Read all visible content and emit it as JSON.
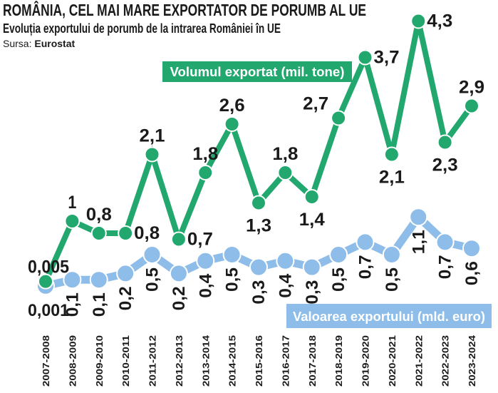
{
  "chart_data": {
    "type": "line",
    "title": "ROMÂNIA, CEL MAI MARE EXPORTATOR DE PORUMB AL UE",
    "subtitle": "Evoluția exportului de porumb de la intrarea României în UE",
    "source_label": "Sursa:",
    "source": "Eurostat",
    "categories": [
      "2007-2008",
      "2008-2009",
      "2009-2010",
      "2010-2011",
      "2011-2012",
      "2012-2013",
      "2013-2014",
      "2014-2015",
      "2015-2016",
      "2016-2017",
      "2017-2018",
      "2018-2019",
      "2019-2020",
      "2020-2021",
      "2021-2022",
      "2022-2023",
      "2023-2024"
    ],
    "series": [
      {
        "name": "Volumul exportat (mil. tone)",
        "color": "#22a86f",
        "values": [
          0.005,
          1,
          0.8,
          0.8,
          2.1,
          0.7,
          1.8,
          2.6,
          1.3,
          1.8,
          1.4,
          2.7,
          3.7,
          2.1,
          4.3,
          2.3,
          2.9
        ],
        "labels": [
          "0,005",
          "1",
          "0,8",
          "0,8",
          "2,1",
          "0,7",
          "1,8",
          "2,6",
          "1,3",
          "1,8",
          "1,4",
          "2,7",
          "3,7",
          "2,1",
          "4,3",
          "2,3",
          "2,9"
        ],
        "label_placement": [
          "left",
          "above",
          "above",
          "below-right",
          "above",
          "right",
          "above",
          "above",
          "below",
          "above",
          "below",
          "left",
          "right",
          "below",
          "right",
          "below",
          "above"
        ]
      },
      {
        "name": "Valoarea exportului (mld. euro)",
        "color": "#8dbde8",
        "values": [
          0.001,
          0.1,
          0.1,
          0.2,
          0.5,
          0.2,
          0.4,
          0.5,
          0.3,
          0.4,
          0.3,
          0.5,
          0.7,
          0.5,
          1.1,
          0.7,
          0.6
        ],
        "labels": [
          "0,001",
          "0,1",
          "0,1",
          "0,2",
          "0,5",
          "0,2",
          "0,4",
          "0,5",
          "0,3",
          "0,4",
          "0,3",
          "0,5",
          "0,7",
          "0,5",
          "1,1",
          "0,7",
          "0,6"
        ]
      }
    ],
    "grid": false,
    "axes_visible": false
  }
}
